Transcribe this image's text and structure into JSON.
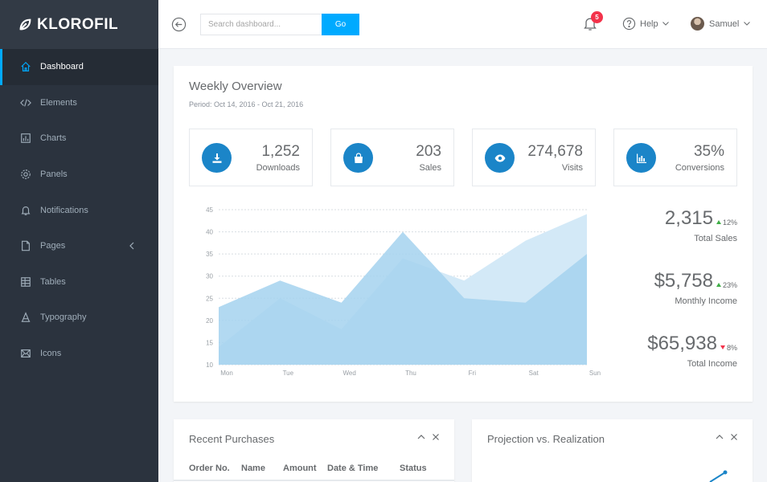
{
  "brand": {
    "name": "KLOROFIL"
  },
  "sidebar": {
    "items": [
      {
        "label": "Dashboard",
        "icon": "home-icon",
        "active": true
      },
      {
        "label": "Elements",
        "icon": "code-icon"
      },
      {
        "label": "Charts",
        "icon": "chart-icon"
      },
      {
        "label": "Panels",
        "icon": "gear-icon"
      },
      {
        "label": "Notifications",
        "icon": "bell-icon"
      },
      {
        "label": "Pages",
        "icon": "file-icon",
        "has_submenu": true
      },
      {
        "label": "Tables",
        "icon": "table-icon"
      },
      {
        "label": "Typography",
        "icon": "typography-icon"
      },
      {
        "label": "Icons",
        "icon": "inbox-icon"
      }
    ]
  },
  "topbar": {
    "search": {
      "placeholder": "Search dashboard...",
      "value": ""
    },
    "go_label": "Go",
    "notifications_count": "5",
    "help_label": "Help",
    "user_name": "Samuel"
  },
  "overview": {
    "title": "Weekly Overview",
    "period": "Period: Oct 14, 2016 - Oct 21, 2016",
    "metrics": [
      {
        "value": "1,252",
        "label": "Downloads",
        "icon": "download-icon"
      },
      {
        "value": "203",
        "label": "Sales",
        "icon": "shopping-bag-icon"
      },
      {
        "value": "274,678",
        "label": "Visits",
        "icon": "eye-icon"
      },
      {
        "value": "35%",
        "label": "Conversions",
        "icon": "bar-chart-icon"
      }
    ],
    "stats": [
      {
        "value": "2,315",
        "change": "12%",
        "direction": "up",
        "label": "Total Sales"
      },
      {
        "value": "$5,758",
        "change": "23%",
        "direction": "up",
        "label": "Monthly Income"
      },
      {
        "value": "$65,938",
        "change": "8%",
        "direction": "down",
        "label": "Total Income"
      }
    ]
  },
  "chart_data": {
    "type": "area",
    "categories": [
      "Mon",
      "Tue",
      "Wed",
      "Thu",
      "Fri",
      "Sat",
      "Sun"
    ],
    "series": [
      {
        "values": [
          23,
          29,
          24,
          40,
          25,
          24,
          35
        ]
      },
      {
        "values": [
          14,
          25,
          18,
          34,
          29,
          38,
          44
        ]
      }
    ],
    "ylim": [
      10,
      45
    ],
    "yticks": [
      10,
      15,
      20,
      25,
      30,
      35,
      40,
      45
    ],
    "grid": true,
    "colors": [
      "#a5d2ee",
      "#d3e9f7"
    ]
  },
  "recent_purchases": {
    "title": "Recent Purchases",
    "columns": [
      "Order No.",
      "Name",
      "Amount",
      "Date & Time",
      "Status"
    ]
  },
  "projection": {
    "title": "Projection vs. Realization"
  },
  "colors": {
    "accent": "#00aaff",
    "sidebar_bg": "#2b333e",
    "icon_circle": "#1b85c8",
    "badge": "#f3334b",
    "up": "#3fad46",
    "down": "#f3334b"
  }
}
